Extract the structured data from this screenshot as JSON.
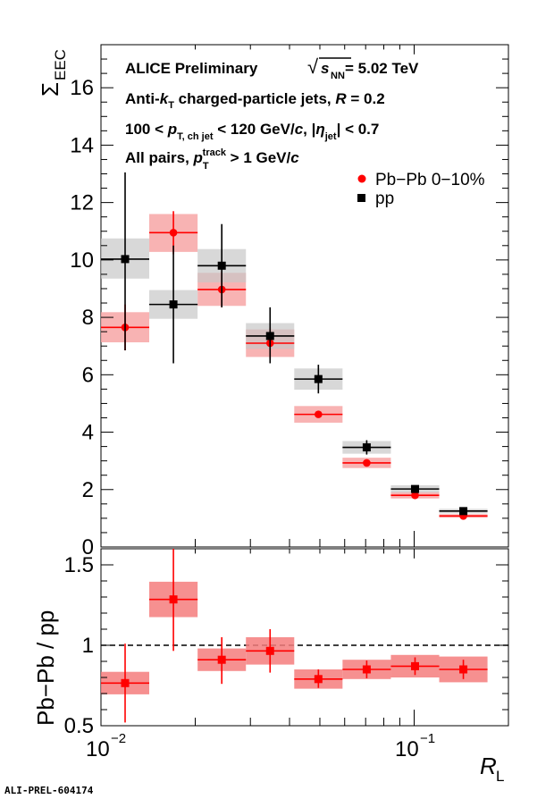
{
  "chart_data": [
    {
      "type": "scatter",
      "panel": "top",
      "x_scale": "log",
      "xlim": [
        0.01,
        0.2
      ],
      "ylim": [
        0,
        17.5
      ],
      "ylabel_main": "Σ",
      "ylabel_sub": "EEC",
      "y_ticks": [
        0,
        2,
        4,
        6,
        8,
        10,
        12,
        14,
        16
      ],
      "annotations": {
        "line1_left": "ALICE Preliminary",
        "line1_sqrt": "√",
        "line1_s": "s",
        "line1_s_sub": "NN",
        "line1_value": " = 5.02 TeV",
        "line2_a": "Anti-",
        "line2_k": "k",
        "line2_k_sub": "T",
        "line2_b": " charged-particle jets,  ",
        "line2_R": "R",
        "line2_c": " = 0.2",
        "line3_a": "100 <   ",
        "line3_p": "p",
        "line3_p_sub": "T, ch jet",
        "line3_b": " < 120 GeV/",
        "line3_c": "c",
        "line3_d": ", |",
        "line3_eta": "η",
        "line3_eta_sub": "jet",
        "line3_e": "| < 0.7",
        "line4_a": "All pairs,   ",
        "line4_p": "p",
        "line4_p_sub": "T",
        "line4_p_sup": "track",
        "line4_b": " > 1 GeV/",
        "line4_c": "c"
      },
      "legend_placement": "top-right",
      "series": [
        {
          "name": "Pb−Pb 0−10%",
          "color": "#ff0000",
          "syst_color": "#f7a6a6",
          "marker": "circle",
          "points": [
            {
              "xlo": 0.01,
              "xhi": 0.01426,
              "y": 7.65,
              "stat_lo": 6.85,
              "stat_hi": 8.45,
              "sys_lo": 7.13,
              "sys_hi": 8.18
            },
            {
              "xlo": 0.01426,
              "xhi": 0.02035,
              "y": 10.95,
              "stat_lo": 10.2,
              "stat_hi": 11.7,
              "sys_lo": 10.28,
              "sys_hi": 11.6
            },
            {
              "xlo": 0.02035,
              "xhi": 0.02903,
              "y": 8.97,
              "stat_lo": 8.35,
              "stat_hi": 9.6,
              "sys_lo": 8.4,
              "sys_hi": 9.55
            },
            {
              "xlo": 0.02903,
              "xhi": 0.04141,
              "y": 7.1,
              "stat_lo": 6.55,
              "stat_hi": 7.65,
              "sys_lo": 6.62,
              "sys_hi": 7.58
            },
            {
              "xlo": 0.04141,
              "xhi": 0.05907,
              "y": 4.62,
              "stat_lo": 4.52,
              "stat_hi": 4.72,
              "sys_lo": 4.33,
              "sys_hi": 4.91
            },
            {
              "xlo": 0.05907,
              "xhi": 0.08427,
              "y": 2.93,
              "stat_lo": 2.86,
              "stat_hi": 3.0,
              "sys_lo": 2.75,
              "sys_hi": 3.11
            },
            {
              "xlo": 0.08427,
              "xhi": 0.12022,
              "y": 1.8,
              "stat_lo": 1.75,
              "stat_hi": 1.85,
              "sys_lo": 1.69,
              "sys_hi": 1.91
            },
            {
              "xlo": 0.12022,
              "xhi": 0.17149,
              "y": 1.08,
              "stat_lo": 1.05,
              "stat_hi": 1.11,
              "sys_lo": 1.02,
              "sys_hi": 1.14
            }
          ]
        },
        {
          "name": "pp",
          "color": "#000000",
          "syst_color": "#c8c8c8",
          "marker": "square",
          "points": [
            {
              "xlo": 0.01,
              "xhi": 0.01426,
              "y": 10.03,
              "stat_lo": 6.85,
              "stat_hi": 13.05,
              "sys_lo": 9.35,
              "sys_hi": 10.75
            },
            {
              "xlo": 0.01426,
              "xhi": 0.02035,
              "y": 8.45,
              "stat_lo": 6.4,
              "stat_hi": 10.5,
              "sys_lo": 7.95,
              "sys_hi": 8.95
            },
            {
              "xlo": 0.02035,
              "xhi": 0.02903,
              "y": 9.8,
              "stat_lo": 8.35,
              "stat_hi": 11.25,
              "sys_lo": 9.22,
              "sys_hi": 10.38
            },
            {
              "xlo": 0.02903,
              "xhi": 0.04141,
              "y": 7.35,
              "stat_lo": 6.4,
              "stat_hi": 8.35,
              "sys_lo": 6.9,
              "sys_hi": 7.8
            },
            {
              "xlo": 0.04141,
              "xhi": 0.05907,
              "y": 5.85,
              "stat_lo": 5.35,
              "stat_hi": 6.35,
              "sys_lo": 5.48,
              "sys_hi": 6.22
            },
            {
              "xlo": 0.05907,
              "xhi": 0.08427,
              "y": 3.47,
              "stat_lo": 3.22,
              "stat_hi": 3.72,
              "sys_lo": 3.25,
              "sys_hi": 3.69
            },
            {
              "xlo": 0.08427,
              "xhi": 0.12022,
              "y": 2.02,
              "stat_lo": 1.9,
              "stat_hi": 2.14,
              "sys_lo": 1.89,
              "sys_hi": 2.15
            },
            {
              "xlo": 0.12022,
              "xhi": 0.17149,
              "y": 1.25,
              "stat_lo": 1.19,
              "stat_hi": 1.31,
              "sys_lo": 1.17,
              "sys_hi": 1.33
            }
          ]
        }
      ]
    },
    {
      "type": "scatter",
      "panel": "bottom",
      "x_scale": "log",
      "xlim": [
        0.01,
        0.2
      ],
      "ylim": [
        0.5,
        1.6
      ],
      "ylabel": "Pb−Pb / pp",
      "xlabel_main": "R",
      "xlabel_sub": "L",
      "y_ticks": [
        0.5,
        1,
        1.5
      ],
      "y_tick_labels": [
        "0.5",
        "1",
        "1.5"
      ],
      "x_ticks": [
        0.01,
        0.1
      ],
      "x_tick_base": "10",
      "x_tick_exps": [
        "−2",
        "−1"
      ],
      "reference_line": 1,
      "series": [
        {
          "name": "Pb−Pb / pp",
          "color": "#ff0000",
          "syst_color": "#f47c7c",
          "marker": "square",
          "points": [
            {
              "xlo": 0.01,
              "xhi": 0.01426,
              "y": 0.765,
              "stat_lo": 0.52,
              "stat_hi": 1.01,
              "sys_lo": 0.695,
              "sys_hi": 0.835
            },
            {
              "xlo": 0.01426,
              "xhi": 0.02035,
              "y": 1.285,
              "stat_lo": 0.965,
              "stat_hi": 1.6,
              "sys_lo": 1.175,
              "sys_hi": 1.395
            },
            {
              "xlo": 0.02035,
              "xhi": 0.02903,
              "y": 0.91,
              "stat_lo": 0.76,
              "stat_hi": 1.05,
              "sys_lo": 0.84,
              "sys_hi": 0.98
            },
            {
              "xlo": 0.02903,
              "xhi": 0.04141,
              "y": 0.965,
              "stat_lo": 0.83,
              "stat_hi": 1.1,
              "sys_lo": 0.88,
              "sys_hi": 1.05
            },
            {
              "xlo": 0.04141,
              "xhi": 0.05907,
              "y": 0.79,
              "stat_lo": 0.735,
              "stat_hi": 0.85,
              "sys_lo": 0.73,
              "sys_hi": 0.85
            },
            {
              "xlo": 0.05907,
              "xhi": 0.08427,
              "y": 0.85,
              "stat_lo": 0.795,
              "stat_hi": 0.905,
              "sys_lo": 0.79,
              "sys_hi": 0.91
            },
            {
              "xlo": 0.08427,
              "xhi": 0.12022,
              "y": 0.87,
              "stat_lo": 0.815,
              "stat_hi": 0.925,
              "sys_lo": 0.8,
              "sys_hi": 0.94
            },
            {
              "xlo": 0.12022,
              "xhi": 0.17149,
              "y": 0.85,
              "stat_lo": 0.79,
              "stat_hi": 0.91,
              "sys_lo": 0.77,
              "sys_hi": 0.93
            }
          ]
        }
      ]
    }
  ],
  "footer": "ALI-PREL-604174"
}
